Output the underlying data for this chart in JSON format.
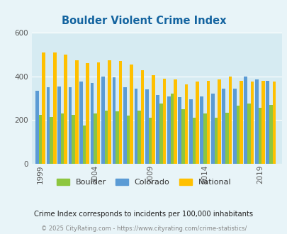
{
  "title": "Boulder Violent Crime Index",
  "years": [
    1999,
    2000,
    2001,
    2002,
    2003,
    2004,
    2005,
    2006,
    2007,
    2008,
    2009,
    2010,
    2011,
    2012,
    2013,
    2014,
    2015,
    2016,
    2017,
    2018,
    2019,
    2020
  ],
  "boulder": [
    225,
    215,
    230,
    225,
    175,
    230,
    245,
    240,
    220,
    245,
    210,
    275,
    320,
    250,
    210,
    230,
    210,
    235,
    265,
    275,
    255,
    270
  ],
  "colorado": [
    335,
    350,
    355,
    350,
    375,
    370,
    400,
    395,
    350,
    345,
    340,
    315,
    310,
    305,
    295,
    310,
    320,
    345,
    345,
    400,
    385,
    380
  ],
  "national": [
    510,
    510,
    500,
    475,
    460,
    465,
    475,
    470,
    455,
    430,
    405,
    390,
    385,
    365,
    375,
    380,
    385,
    400,
    380,
    375,
    380,
    375
  ],
  "boulder_color": "#8dc63f",
  "colorado_color": "#5b9bd5",
  "national_color": "#ffc000",
  "bg_color": "#e8f4f8",
  "plot_bg_color": "#d6ebf2",
  "grid_color": "#ffffff",
  "title_color": "#1464a0",
  "footer_text": "Crime Index corresponds to incidents per 100,000 inhabitants",
  "credit_text": "© 2025 CityRating.com - https://www.cityrating.com/crime-statistics/",
  "xtick_labels": [
    "1999",
    "2004",
    "2009",
    "2014",
    "2019"
  ],
  "xtick_positions": [
    1999,
    2004,
    2009,
    2014,
    2019
  ]
}
